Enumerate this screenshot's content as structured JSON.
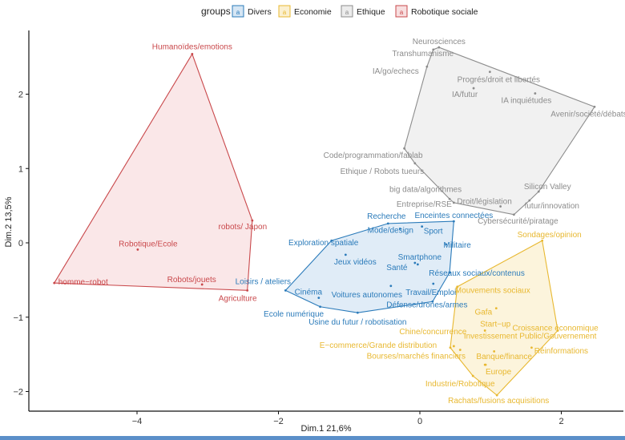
{
  "chart_data": {
    "type": "scatter",
    "title": "",
    "xlabel": "Dim.1 21,6%",
    "ylabel": "Dim.2 13,5%",
    "xlim": [
      -5.4,
      2.9
    ],
    "ylim": [
      -2.27,
      2.85
    ],
    "x_ticks": [
      -4,
      -2,
      0,
      2
    ],
    "y_ticks": [
      -2,
      -1,
      0,
      1,
      2
    ],
    "x_tick_labels": [
      "−4",
      "−2",
      "0",
      "2"
    ],
    "y_tick_labels": [
      "−2",
      "−1",
      "0",
      "1",
      "2"
    ],
    "grid": false,
    "legend": {
      "title": "groups",
      "placement": "top",
      "glyph": "a",
      "entries": [
        "Divers",
        "Economie",
        "Ethique",
        "Robotique sociale"
      ]
    },
    "series": [
      {
        "name": "Divers",
        "color": "#2b7bba",
        "fill": "#d6e6f4",
        "points": [
          {
            "label": "Recherche",
            "x": -0.45,
            "y": 0.26
          },
          {
            "label": "Enceintes connectées",
            "x": 0.48,
            "y": 0.29
          },
          {
            "label": "Mode/design",
            "x": -0.28,
            "y": 0.19
          },
          {
            "label": "Sport",
            "x": 0.03,
            "y": 0.22
          },
          {
            "label": "Militaire",
            "x": 0.37,
            "y": -0.02
          },
          {
            "label": "Exploration spatiale",
            "x": -1.25,
            "y": 0.03
          },
          {
            "label": "Jeux vidéos",
            "x": -1.05,
            "y": -0.16
          },
          {
            "label": "Smartphone",
            "x": -0.07,
            "y": -0.27
          },
          {
            "label": "Santé",
            "x": -0.03,
            "y": -0.29
          },
          {
            "label": "Réseaux sociaux/contenus",
            "x": 0.42,
            "y": -0.4
          },
          {
            "label": "Loisirs / ateliers",
            "x": -1.9,
            "y": -0.64
          },
          {
            "label": "Cinéma",
            "x": -1.43,
            "y": -0.74
          },
          {
            "label": "Voitures autonomes",
            "x": -0.41,
            "y": -0.58
          },
          {
            "label": "Travail/Emploi",
            "x": 0.19,
            "y": -0.55
          },
          {
            "label": "Défense/drones/armes",
            "x": 0.18,
            "y": -0.79
          },
          {
            "label": "Ecole numérique",
            "x": -1.41,
            "y": -0.86
          },
          {
            "label": "Usine du futur / robotisation",
            "x": -0.88,
            "y": -0.94
          }
        ]
      },
      {
        "name": "Economie",
        "color": "#e8b830",
        "fill": "#fbf0d0",
        "points": [
          {
            "label": "Sondages/opinion",
            "x": 1.73,
            "y": 0.03
          },
          {
            "label": "Mouvements sociaux",
            "x": 0.53,
            "y": -0.59
          },
          {
            "label": "Gafa",
            "x": 1.08,
            "y": -0.88
          },
          {
            "label": "Start−up",
            "x": 0.92,
            "y": -1.18
          },
          {
            "label": "Croissance économique",
            "x": 1.95,
            "y": -1.18
          },
          {
            "label": "Chine/concurrence",
            "x": 0.48,
            "y": -1.39
          },
          {
            "label": "Investissement Public/Gouvernement",
            "x": 1.05,
            "y": -1.46
          },
          {
            "label": "E−commerce/Grande distribution",
            "x": 0.43,
            "y": -1.41
          },
          {
            "label": "Bourses/marchés financiers",
            "x": 0.57,
            "y": -1.44
          },
          {
            "label": "Réinformations",
            "x": 1.58,
            "y": -1.41
          },
          {
            "label": "Banque/finance",
            "x": 0.92,
            "y": -1.64
          },
          {
            "label": "Europe",
            "x": 0.93,
            "y": -1.64
          },
          {
            "label": "Industrie/Robotique",
            "x": 0.75,
            "y": -1.79
          },
          {
            "label": "Rachats/fusions acquisitions",
            "x": 1.09,
            "y": -2.05
          }
        ]
      },
      {
        "name": "Ethique",
        "color": "#8c8c8c",
        "fill": "#ececec",
        "points": [
          {
            "label": "Neurosciences",
            "x": 0.27,
            "y": 2.63
          },
          {
            "label": "Transhumanisme",
            "x": 0.19,
            "y": 2.6
          },
          {
            "label": "IA/go/echecs",
            "x": 0.1,
            "y": 2.37
          },
          {
            "label": "Progrés/droit et libertés",
            "x": 0.99,
            "y": 2.3
          },
          {
            "label": "IA/futur",
            "x": 0.76,
            "y": 2.08
          },
          {
            "label": "IA inquiétudes",
            "x": 1.63,
            "y": 2.01
          },
          {
            "label": "Avenir/société/débats",
            "x": 2.47,
            "y": 1.83
          },
          {
            "label": "Code/programmation/fablab",
            "x": -0.22,
            "y": 1.27
          },
          {
            "label": "Ethique / Robots tueurs",
            "x": -0.07,
            "y": 1.07
          },
          {
            "label": "big data/algorithmes",
            "x": 0.42,
            "y": 0.59
          },
          {
            "label": "Entreprise/RSE",
            "x": 0.48,
            "y": 0.54
          },
          {
            "label": "Droit/législation",
            "x": 1.14,
            "y": 0.49
          },
          {
            "label": "Silicon Valley",
            "x": 1.68,
            "y": 0.69
          },
          {
            "label": "futur/innovation",
            "x": 1.55,
            "y": 0.57
          },
          {
            "label": "Cybersécurité/piratage",
            "x": 1.33,
            "y": 0.38
          }
        ]
      },
      {
        "name": "Robotique sociale",
        "color": "#c9484b",
        "fill": "#f8dfe0",
        "points": [
          {
            "label": "Humanoïdes/emotions",
            "x": -3.22,
            "y": 2.54
          },
          {
            "label": "robots/ Japon",
            "x": -2.37,
            "y": 0.3
          },
          {
            "label": "Robotique/Ecole",
            "x": -3.99,
            "y": -0.09
          },
          {
            "label": "homme−robot",
            "x": -5.17,
            "y": -0.54
          },
          {
            "label": "Robots/jouets",
            "x": -3.08,
            "y": -0.56
          },
          {
            "label": "Agriculture",
            "x": -2.44,
            "y": -0.64
          }
        ]
      }
    ]
  }
}
